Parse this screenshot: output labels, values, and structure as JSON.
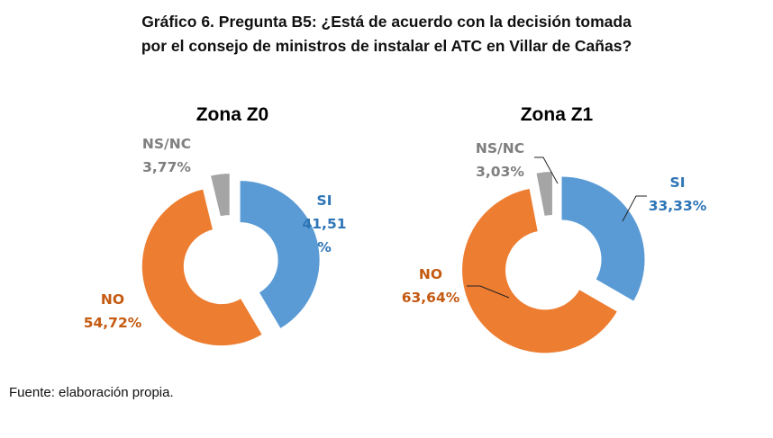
{
  "title_line1": "Gráfico 6. Pregunta B5: ¿Está de acuerdo con la decisión tomada",
  "title_line2": "por el consejo de ministros de instalar el ATC en Villar de Cañas?",
  "source": "Fuente: elaboración propia.",
  "chart_data": [
    {
      "type": "pie",
      "subtype": "exploded-donut",
      "title": "Zona Z0",
      "categories": [
        "SI",
        "NO",
        "NS/NC"
      ],
      "values": [
        41.51,
        54.72,
        3.77
      ],
      "value_labels": [
        "41,51 %",
        "54,72%",
        "3,77%"
      ],
      "colors": [
        "#5b9bd5",
        "#ed7d31",
        "#a5a5a5"
      ],
      "start": "top, clockwise"
    },
    {
      "type": "pie",
      "subtype": "exploded-donut",
      "title": "Zona Z1",
      "categories": [
        "SI",
        "NO",
        "NS/NC"
      ],
      "values": [
        33.33,
        63.64,
        3.03
      ],
      "value_labels": [
        "33,33%",
        "63,64%",
        "3,03%"
      ],
      "colors": [
        "#5b9bd5",
        "#ed7d31",
        "#a5a5a5"
      ],
      "start": "top, clockwise"
    }
  ],
  "label_colors": {
    "SI": "#2e75b6",
    "NO": "#c55a11",
    "NS/NC": "#7f7f7f"
  },
  "labels": {
    "z0": {
      "si": "SI",
      "si_v1": "41,51",
      "si_v2": "%",
      "no": "NO",
      "no_v": "54,72%",
      "ns": "NS/NC",
      "ns_v": "3,77%"
    },
    "z1": {
      "si": "SI",
      "si_v": "33,33%",
      "no": "NO",
      "no_v": "63,64%",
      "ns": "NS/NC",
      "ns_v": "3,03%"
    }
  }
}
